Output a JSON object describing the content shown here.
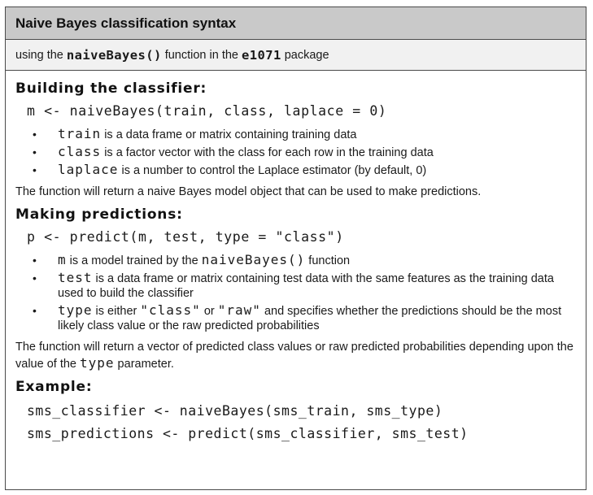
{
  "title": "Naive Bayes classification syntax",
  "subtitle": {
    "pre": "using the ",
    "function": "naiveBayes()",
    "mid": " function in the ",
    "package": "e1071",
    "post": " package"
  },
  "building": {
    "heading": "Building the classifier:",
    "code": "m <- naiveBayes(train, class, laplace = 0)",
    "items": [
      {
        "term": "train",
        "text": " is a data frame or matrix containing training data"
      },
      {
        "term": "class",
        "text": " is a factor vector with the class for each row in the training data"
      },
      {
        "term": "laplace",
        "text": " is a number to control the Laplace estimator (by default, 0)"
      }
    ],
    "returns": "The function will return a naive Bayes model object that can be used to make predictions."
  },
  "predicting": {
    "heading": "Making predictions:",
    "code": "p <- predict(m, test, type = \"class\")",
    "item1": {
      "term": "m",
      "text1": " is a model trained by the ",
      "term2": "naiveBayes()",
      "text2": " function"
    },
    "item2": {
      "term": "test",
      "text": " is a data frame or matrix containing test data with the same features as the training data used to build the classifier"
    },
    "item3": {
      "term": "type",
      "text1": " is either ",
      "term2": "\"class\"",
      "text2": " or ",
      "term3": "\"raw\"",
      "text3": " and specifies whether the predictions should be the most likely class value or the raw predicted probabilities"
    },
    "returns_pre": "The function will return a vector of predicted class values or raw predicted probabilities depending upon the value of the ",
    "returns_term": "type",
    "returns_post": " parameter."
  },
  "example": {
    "heading": "Example:",
    "line1": "sms_classifier <- naiveBayes(sms_train, sms_type)",
    "line2": "sms_predictions <- predict(sms_classifier, sms_test)"
  }
}
